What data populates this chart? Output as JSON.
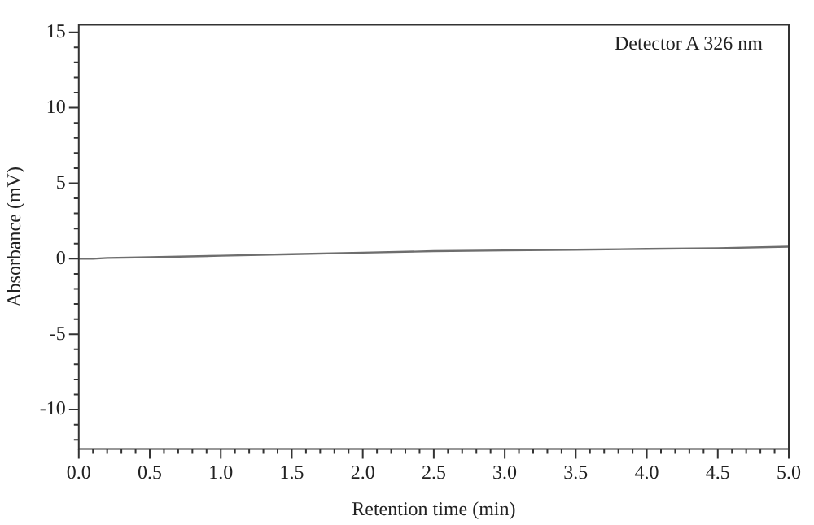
{
  "chart_data": {
    "type": "line",
    "xlabel": "Retention time (min)",
    "ylabel": "Absorbance (mV)",
    "annotations": [
      "Detector A 326 nm"
    ],
    "x": [
      0,
      0.1,
      0.2,
      0.5,
      1.0,
      1.5,
      2.0,
      2.5,
      3.0,
      3.5,
      4.0,
      4.5,
      5.0
    ],
    "series": [
      {
        "color": "#6e6e6e",
        "values": [
          0.0,
          0.0,
          0.05,
          0.1,
          0.2,
          0.3,
          0.4,
          0.5,
          0.55,
          0.6,
          0.65,
          0.7,
          0.8
        ]
      }
    ],
    "xlim": [
      0,
      5
    ],
    "xticks": [
      {
        "value": 0,
        "label": "0.0"
      },
      {
        "value": 0.1,
        "label": null
      },
      {
        "value": 0.2,
        "label": null
      },
      {
        "value": 0.3,
        "label": null
      },
      {
        "value": 0.4,
        "label": null
      },
      {
        "value": 0.5,
        "label": "0.5"
      },
      {
        "value": 0.6,
        "label": null
      },
      {
        "value": 0.7,
        "label": null
      },
      {
        "value": 0.8,
        "label": null
      },
      {
        "value": 0.9,
        "label": null
      },
      {
        "value": 1,
        "label": "1.0"
      },
      {
        "value": 1.1,
        "label": null
      },
      {
        "value": 1.2,
        "label": null
      },
      {
        "value": 1.3,
        "label": null
      },
      {
        "value": 1.4,
        "label": null
      },
      {
        "value": 1.5,
        "label": "1.5"
      },
      {
        "value": 1.6,
        "label": null
      },
      {
        "value": 1.7,
        "label": null
      },
      {
        "value": 1.8,
        "label": null
      },
      {
        "value": 1.9,
        "label": null
      },
      {
        "value": 2,
        "label": "2.0"
      },
      {
        "value": 2.1,
        "label": null
      },
      {
        "value": 2.2,
        "label": null
      },
      {
        "value": 2.3,
        "label": null
      },
      {
        "value": 2.4,
        "label": null
      },
      {
        "value": 2.5,
        "label": "2.5"
      },
      {
        "value": 2.6,
        "label": null
      },
      {
        "value": 2.7,
        "label": null
      },
      {
        "value": 2.8,
        "label": null
      },
      {
        "value": 2.9,
        "label": null
      },
      {
        "value": 3,
        "label": "3.0"
      },
      {
        "value": 3.1,
        "label": null
      },
      {
        "value": 3.2,
        "label": null
      },
      {
        "value": 3.3,
        "label": null
      },
      {
        "value": 3.4,
        "label": null
      },
      {
        "value": 3.5,
        "label": "3.5"
      },
      {
        "value": 3.6,
        "label": null
      },
      {
        "value": 3.7,
        "label": null
      },
      {
        "value": 3.8,
        "label": null
      },
      {
        "value": 3.9,
        "label": null
      },
      {
        "value": 4,
        "label": "4.0"
      },
      {
        "value": 4.1,
        "label": null
      },
      {
        "value": 4.2,
        "label": null
      },
      {
        "value": 4.3,
        "label": null
      },
      {
        "value": 4.4,
        "label": null
      },
      {
        "value": 4.5,
        "label": "4.5"
      },
      {
        "value": 4.6,
        "label": null
      },
      {
        "value": 4.7,
        "label": null
      },
      {
        "value": 4.8,
        "label": null
      },
      {
        "value": 4.9,
        "label": null
      },
      {
        "value": 5,
        "label": "5.0"
      }
    ],
    "ylim": [
      -12.6,
      15.5
    ],
    "yticks": [
      {
        "value": -12,
        "label": null
      },
      {
        "value": -11,
        "label": null
      },
      -10,
      {
        "value": -9,
        "label": null
      },
      {
        "value": -8,
        "label": null
      },
      {
        "value": -7,
        "label": null
      },
      {
        "value": -6,
        "label": null
      },
      -5,
      {
        "value": -4,
        "label": null
      },
      {
        "value": -3,
        "label": null
      },
      {
        "value": -2,
        "label": null
      },
      {
        "value": -1,
        "label": null
      },
      0,
      {
        "value": 1,
        "label": null
      },
      {
        "value": 2,
        "label": null
      },
      {
        "value": 3,
        "label": null
      },
      {
        "value": 4,
        "label": null
      },
      5,
      {
        "value": 6,
        "label": null
      },
      {
        "value": 7,
        "label": null
      },
      {
        "value": 8,
        "label": null
      },
      {
        "value": 9,
        "label": null
      },
      10,
      {
        "value": 11,
        "label": null
      },
      {
        "value": 12,
        "label": null
      },
      {
        "value": 13,
        "label": null
      },
      {
        "value": 14,
        "label": null
      },
      15
    ],
    "grid": false,
    "legend": false,
    "marker": "none",
    "line_style": "solid"
  }
}
